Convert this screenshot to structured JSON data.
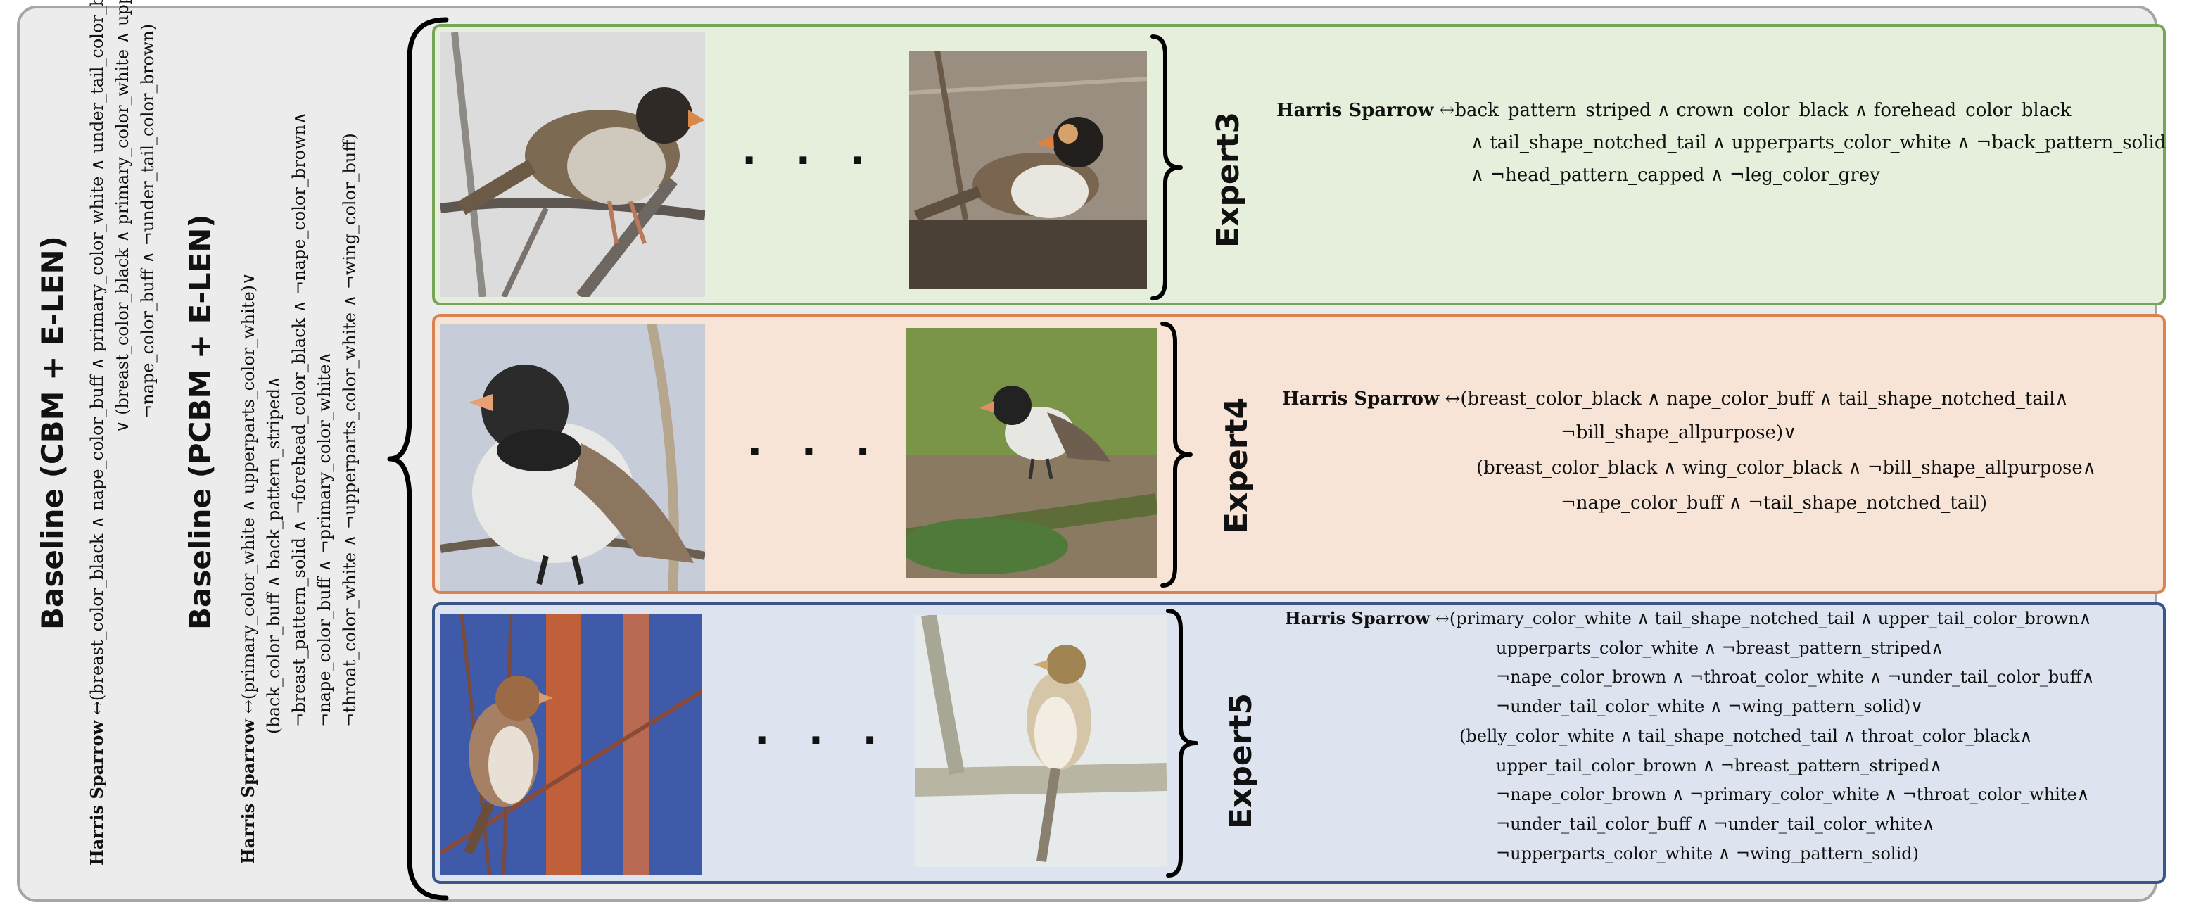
{
  "baseline_cbm": {
    "title": "Baseline (CBM + E-LEN)",
    "lines": [
      "Harris Sparrow ↔(breast_color_black ∧ nape_color_buff ∧ primary_color_white ∧ under_tail_color_brown)",
      "∨ (breast_color_black ∧ primary_color_white ∧ upperparts_color_white∧",
      "¬nape_color_buff ∧ ¬under_tail_color_brown)"
    ]
  },
  "baseline_pcbm": {
    "title": "Baseline (PCBM + E-LEN)",
    "lines": [
      "Harris Sparrow ↔(primary_color_white ∧ upperparts_color_white)∨",
      "(back_color_buff ∧ back_pattern_striped∧",
      "¬breast_pattern_solid ∧ ¬forehead_color_black ∧ ¬nape_color_brown∧",
      "¬nape_color_buff ∧ ¬primary_color_white∧",
      "¬throat_color_white ∧ ¬upperparts_color_white ∧ ¬wing_color_buff)"
    ]
  },
  "experts": [
    {
      "name": "Expert3",
      "ellipsis": "· · ·",
      "rule_lines": [
        "Harris Sparrow ↔back_pattern_striped ∧ crown_color_black ∧ forehead_color_black",
        "∧ tail_shape_notched_tail ∧ upperparts_color_white ∧ ¬back_pattern_solid",
        "∧ ¬head_pattern_capped ∧ ¬leg_color_grey"
      ]
    },
    {
      "name": "Expert4",
      "ellipsis": "· · ·",
      "rule_lines": [
        "Harris Sparrow ↔(breast_color_black ∧ nape_color_buff ∧ tail_shape_notched_tail∧",
        "¬bill_shape_allpurpose)∨",
        "(breast_color_black ∧ wing_color_black ∧ ¬bill_shape_allpurpose∧",
        "¬nape_color_buff ∧ ¬tail_shape_notched_tail)"
      ]
    },
    {
      "name": "Expert5",
      "ellipsis": "· · ·",
      "rule_lines": [
        "Harris Sparrow ↔(primary_color_white ∧ tail_shape_notched_tail ∧ upper_tail_color_brown∧",
        "upperparts_color_white ∧ ¬breast_pattern_striped∧",
        "¬nape_color_brown ∧ ¬throat_color_white ∧ ¬under_tail_color_buff∧",
        "¬under_tail_color_white ∧ ¬wing_pattern_solid)∨",
        "(belly_color_white ∧ tail_shape_notched_tail ∧ throat_color_black∧",
        "upper_tail_color_brown ∧ ¬breast_pattern_striped∧",
        "¬nape_color_brown ∧ ¬primary_color_white ∧ ¬throat_color_white∧",
        "¬under_tail_color_buff ∧ ¬under_tail_color_white∧",
        "¬upperparts_color_white ∧ ¬wing_pattern_solid)"
      ]
    }
  ],
  "colors": {
    "expert3_fill": "#e6efdb",
    "expert3_border": "#78a659",
    "expert4_fill": "#f7e4d6",
    "expert4_border": "#d98352",
    "expert5_fill": "#dde3ef",
    "expert5_border": "#3a5689"
  }
}
